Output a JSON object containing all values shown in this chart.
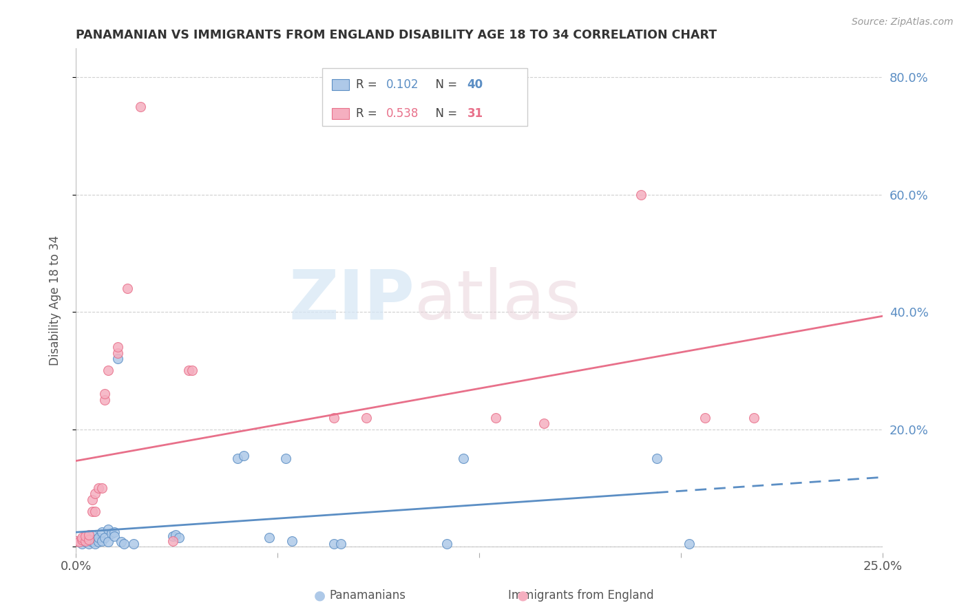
{
  "title": "PANAMANIAN VS IMMIGRANTS FROM ENGLAND DISABILITY AGE 18 TO 34 CORRELATION CHART",
  "source": "Source: ZipAtlas.com",
  "xmin": 0.0,
  "xmax": 0.25,
  "ymin": -0.01,
  "ymax": 0.85,
  "pan_R": 0.102,
  "pan_N": 40,
  "eng_R": 0.538,
  "eng_N": 31,
  "pan_color": "#aec9e8",
  "eng_color": "#f5afc0",
  "pan_line_color": "#5b8ec4",
  "eng_line_color": "#e8708a",
  "pan_scatter": [
    [
      0.0,
      0.01
    ],
    [
      0.001,
      0.008
    ],
    [
      0.002,
      0.005
    ],
    [
      0.002,
      0.012
    ],
    [
      0.003,
      0.008
    ],
    [
      0.003,
      0.015
    ],
    [
      0.004,
      0.01
    ],
    [
      0.004,
      0.005
    ],
    [
      0.005,
      0.008
    ],
    [
      0.005,
      0.02
    ],
    [
      0.006,
      0.012
    ],
    [
      0.006,
      0.005
    ],
    [
      0.007,
      0.008
    ],
    [
      0.007,
      0.015
    ],
    [
      0.008,
      0.01
    ],
    [
      0.008,
      0.025
    ],
    [
      0.009,
      0.015
    ],
    [
      0.01,
      0.008
    ],
    [
      0.01,
      0.03
    ],
    [
      0.011,
      0.022
    ],
    [
      0.012,
      0.025
    ],
    [
      0.012,
      0.018
    ],
    [
      0.013,
      0.32
    ],
    [
      0.014,
      0.008
    ],
    [
      0.015,
      0.005
    ],
    [
      0.018,
      0.005
    ],
    [
      0.03,
      0.018
    ],
    [
      0.031,
      0.02
    ],
    [
      0.032,
      0.015
    ],
    [
      0.05,
      0.15
    ],
    [
      0.052,
      0.155
    ],
    [
      0.06,
      0.015
    ],
    [
      0.065,
      0.15
    ],
    [
      0.067,
      0.01
    ],
    [
      0.08,
      0.005
    ],
    [
      0.082,
      0.005
    ],
    [
      0.115,
      0.005
    ],
    [
      0.12,
      0.15
    ],
    [
      0.18,
      0.15
    ],
    [
      0.19,
      0.005
    ]
  ],
  "eng_scatter": [
    [
      0.0,
      0.01
    ],
    [
      0.001,
      0.008
    ],
    [
      0.002,
      0.012
    ],
    [
      0.002,
      0.015
    ],
    [
      0.003,
      0.01
    ],
    [
      0.003,
      0.018
    ],
    [
      0.004,
      0.012
    ],
    [
      0.004,
      0.02
    ],
    [
      0.005,
      0.06
    ],
    [
      0.005,
      0.08
    ],
    [
      0.006,
      0.06
    ],
    [
      0.006,
      0.09
    ],
    [
      0.007,
      0.1
    ],
    [
      0.008,
      0.1
    ],
    [
      0.009,
      0.25
    ],
    [
      0.009,
      0.26
    ],
    [
      0.01,
      0.3
    ],
    [
      0.013,
      0.33
    ],
    [
      0.013,
      0.34
    ],
    [
      0.016,
      0.44
    ],
    [
      0.02,
      0.75
    ],
    [
      0.03,
      0.01
    ],
    [
      0.035,
      0.3
    ],
    [
      0.036,
      0.3
    ],
    [
      0.08,
      0.22
    ],
    [
      0.09,
      0.22
    ],
    [
      0.13,
      0.22
    ],
    [
      0.145,
      0.21
    ],
    [
      0.175,
      0.6
    ],
    [
      0.195,
      0.22
    ],
    [
      0.21,
      0.22
    ]
  ],
  "watermark_zip": "ZIP",
  "watermark_atlas": "atlas",
  "background_color": "#ffffff",
  "grid_color": "#d0d0d0",
  "legend_box_color": "#cccccc",
  "title_color": "#333333",
  "axis_label_color": "#555555",
  "right_axis_color": "#5b8ec4",
  "bottom_label_color": "#555555"
}
